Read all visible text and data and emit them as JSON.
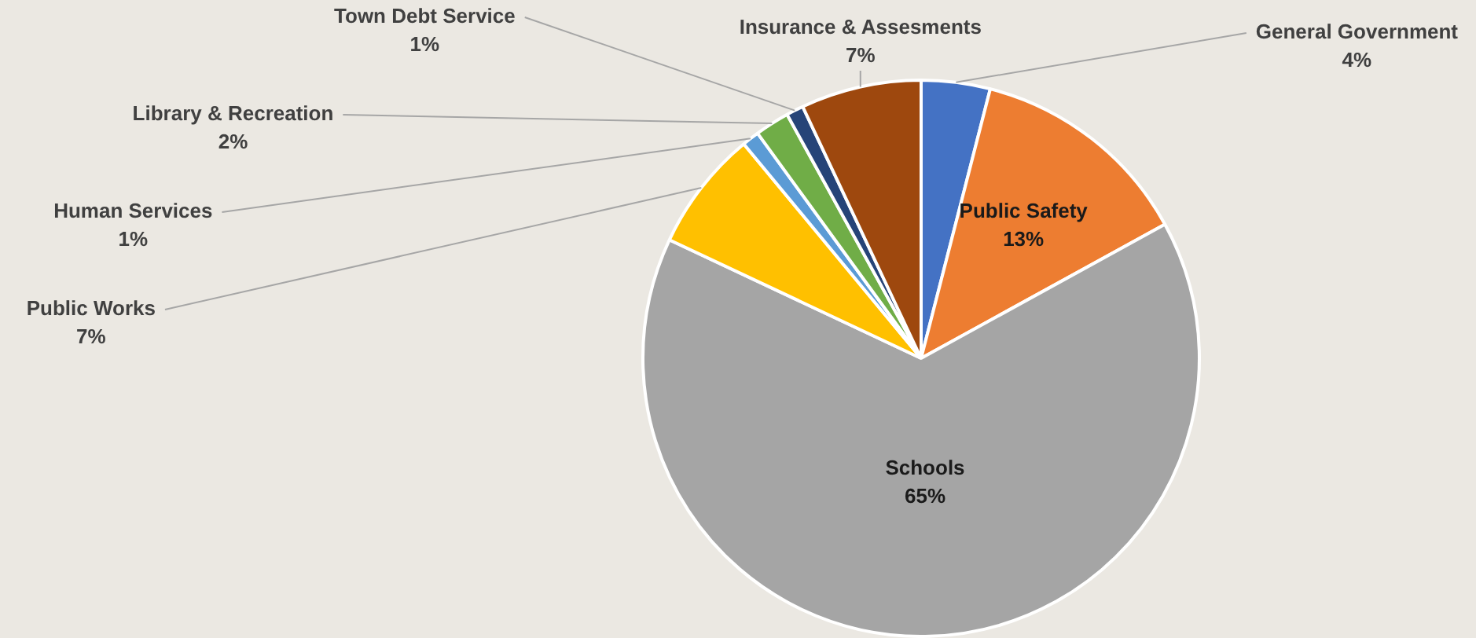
{
  "chart_data": {
    "type": "pie",
    "categories": [
      "General Government",
      "Public Safety",
      "Schools",
      "Public Works",
      "Human Services",
      "Library & Recreation",
      "Town Debt Service",
      "Insurance & Assesments"
    ],
    "values": [
      4,
      13,
      65,
      7,
      1,
      2,
      1,
      7
    ],
    "value_labels": [
      "4%",
      "13%",
      "65%",
      "7%",
      "1%",
      "2%",
      "1%",
      "7%"
    ],
    "colors": [
      "#4472c4",
      "#ed7d31",
      "#a5a5a5",
      "#ffc000",
      "#5b9bd5",
      "#70ad47",
      "#264478",
      "#9e480e"
    ],
    "legend": false
  }
}
